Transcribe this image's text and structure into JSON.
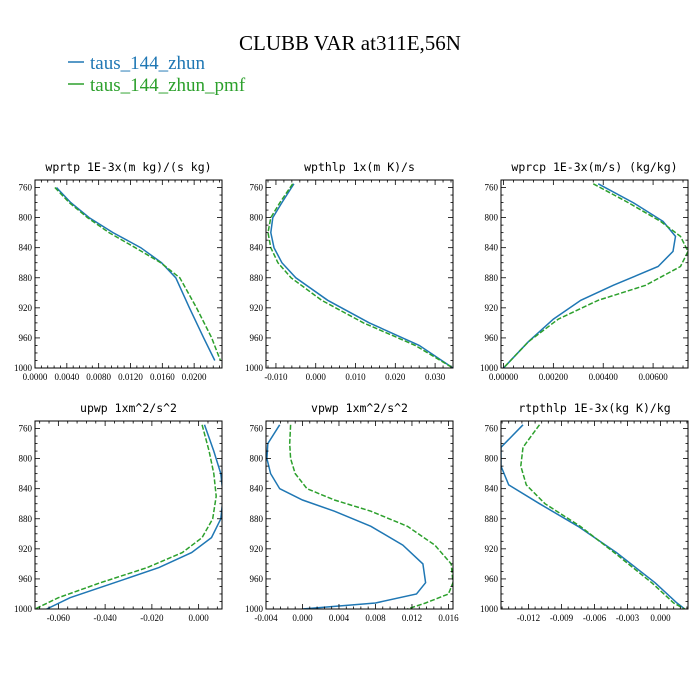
{
  "figure": {
    "title": "CLUBB VAR at311E,56N",
    "legend": [
      {
        "label": "taus_144_zhun",
        "color": "#1f77b4"
      },
      {
        "label": "taus_144_zhun_pmf",
        "color": "#2ca02c"
      }
    ]
  },
  "chart_data": [
    {
      "type": "line",
      "title": "wprtp  1E-3x(m kg)/(s kg)",
      "xlim": [
        0.0,
        0.0235
      ],
      "ylim": [
        1000,
        750
      ],
      "xticks": [
        0.0,
        0.004,
        0.008,
        0.012,
        0.016,
        0.02
      ],
      "xtick_labels": [
        "0.0000",
        "0.0040",
        "0.0080",
        "0.0120",
        "0.0160",
        "0.0200"
      ],
      "yticks": [
        760,
        800,
        840,
        880,
        920,
        960,
        1000
      ],
      "series": [
        {
          "name": "taus_144_zhun",
          "x": [
            0.0027,
            0.0045,
            0.0068,
            0.0098,
            0.0133,
            0.0159,
            0.0177,
            0.0194,
            0.0212,
            0.0226
          ],
          "y": [
            760,
            780,
            800,
            820,
            840,
            860,
            880,
            920,
            960,
            990
          ]
        },
        {
          "name": "taus_144_zhun_pmf",
          "x": [
            0.0025,
            0.0043,
            0.0066,
            0.0093,
            0.0126,
            0.0158,
            0.0182,
            0.0203,
            0.0222,
            0.0233
          ],
          "y": [
            760,
            780,
            800,
            820,
            840,
            860,
            880,
            920,
            960,
            990
          ]
        }
      ]
    },
    {
      "type": "line",
      "title": "wpthlp  1x(m K)/s",
      "xlim": [
        -0.0125,
        0.0345
      ],
      "ylim": [
        1000,
        750
      ],
      "xticks": [
        -0.01,
        0.0,
        0.01,
        0.02,
        0.03
      ],
      "xtick_labels": [
        "-0.010",
        "0.000",
        "0.010",
        "0.020",
        "0.030"
      ],
      "yticks": [
        760,
        800,
        840,
        880,
        920,
        960,
        1000
      ],
      "series": [
        {
          "name": "taus_144_zhun",
          "x": [
            -0.0055,
            -0.0085,
            -0.0108,
            -0.0113,
            -0.0105,
            -0.0085,
            -0.005,
            0.003,
            0.0135,
            0.026,
            0.0345
          ],
          "y": [
            755,
            780,
            800,
            820,
            840,
            860,
            880,
            910,
            940,
            970,
            1000
          ]
        },
        {
          "name": "taus_144_zhun_pmf",
          "x": [
            -0.0058,
            -0.009,
            -0.0113,
            -0.012,
            -0.0113,
            -0.0095,
            -0.0062,
            0.0015,
            0.012,
            0.025,
            0.0345
          ],
          "y": [
            755,
            780,
            800,
            820,
            840,
            860,
            880,
            910,
            940,
            970,
            1000
          ]
        }
      ]
    },
    {
      "type": "line",
      "title": "wprcp  1E-3x(m/s) (kg/kg)",
      "xlim": [
        -0.0001,
        0.0074
      ],
      "ylim": [
        1000,
        750
      ],
      "xticks": [
        0.0,
        0.002,
        0.004,
        0.006
      ],
      "xtick_labels": [
        "0.00000",
        "0.00200",
        "0.00400",
        "0.00600"
      ],
      "yticks": [
        760,
        800,
        840,
        880,
        920,
        960,
        1000
      ],
      "series": [
        {
          "name": "taus_144_zhun",
          "x": [
            0.0038,
            0.0052,
            0.0064,
            0.0069,
            0.0068,
            0.0062,
            0.0044,
            0.0031,
            0.002,
            0.001,
            0.0
          ],
          "y": [
            755,
            780,
            805,
            825,
            845,
            865,
            890,
            910,
            935,
            965,
            1000
          ]
        },
        {
          "name": "taus_144_zhun_pmf",
          "x": [
            0.0036,
            0.005,
            0.0063,
            0.0071,
            0.0074,
            0.0071,
            0.0057,
            0.0038,
            0.0022,
            0.001,
            0.0
          ],
          "y": [
            755,
            780,
            805,
            825,
            845,
            865,
            890,
            910,
            935,
            965,
            1000
          ]
        }
      ]
    },
    {
      "type": "line",
      "title": "upwp  1xm^2/s^2",
      "xlim": [
        -0.07,
        0.01
      ],
      "ylim": [
        1000,
        750
      ],
      "xticks": [
        -0.06,
        -0.04,
        -0.02,
        0.0
      ],
      "xtick_labels": [
        "-0.060",
        "-0.040",
        "-0.020",
        "0.000"
      ],
      "yticks": [
        760,
        800,
        840,
        880,
        920,
        960,
        1000
      ],
      "series": [
        {
          "name": "taus_144_zhun",
          "x": [
            0.0025,
            0.0065,
            0.0095,
            0.0105,
            0.0095,
            0.0055,
            -0.003,
            -0.017,
            -0.036,
            -0.055,
            -0.065
          ],
          "y": [
            755,
            790,
            820,
            850,
            880,
            905,
            925,
            945,
            965,
            985,
            1000
          ]
        },
        {
          "name": "taus_144_zhun_pmf",
          "x": [
            0.0015,
            0.0045,
            0.0065,
            0.0075,
            0.006,
            0.0015,
            -0.007,
            -0.022,
            -0.042,
            -0.06,
            -0.07
          ],
          "y": [
            755,
            790,
            820,
            850,
            880,
            905,
            925,
            945,
            965,
            985,
            1000
          ]
        }
      ]
    },
    {
      "type": "line",
      "title": "vpwp  1xm^2/s^2",
      "xlim": [
        -0.004,
        0.0165
      ],
      "ylim": [
        1000,
        750
      ],
      "xticks": [
        -0.004,
        0.0,
        0.004,
        0.008,
        0.012,
        0.016
      ],
      "xtick_labels": [
        "-0.004",
        "0.000",
        "0.004",
        "0.008",
        "0.012",
        "0.016"
      ],
      "yticks": [
        760,
        800,
        840,
        880,
        920,
        960,
        1000
      ],
      "series": [
        {
          "name": "taus_144_zhun",
          "x": [
            -0.0025,
            -0.0038,
            -0.0039,
            -0.0035,
            -0.0025,
            0.0,
            0.0035,
            0.0075,
            0.011,
            0.0132,
            0.0135,
            0.0125,
            0.008,
            0.0
          ],
          "y": [
            755,
            780,
            800,
            820,
            840,
            855,
            870,
            890,
            915,
            940,
            965,
            980,
            992,
            1000
          ]
        },
        {
          "name": "taus_144_zhun_pmf",
          "x": [
            -0.0013,
            -0.0014,
            -0.0013,
            -0.0008,
            0.0005,
            0.0035,
            0.0075,
            0.0115,
            0.0145,
            0.0163,
            0.0165,
            0.016,
            0.0135,
            0.0115
          ],
          "y": [
            755,
            780,
            800,
            820,
            840,
            855,
            870,
            890,
            915,
            940,
            965,
            980,
            992,
            1000
          ]
        }
      ]
    },
    {
      "type": "line",
      "title": "rtpthlp  1E-3x(kg K)/kg",
      "xlim": [
        -0.0145,
        0.0025
      ],
      "ylim": [
        1000,
        750
      ],
      "xticks": [
        -0.012,
        -0.009,
        -0.006,
        -0.003,
        0.0
      ],
      "xtick_labels": [
        "-0.012",
        "-0.009",
        "-0.006",
        "-0.003",
        "0.000"
      ],
      "yticks": [
        760,
        800,
        840,
        880,
        920,
        960,
        1000
      ],
      "series": [
        {
          "name": "taus_144_zhun",
          "x": [
            -0.0125,
            -0.0145,
            -0.0145,
            -0.0138,
            -0.011,
            -0.0075,
            -0.004,
            -0.0005,
            0.0015,
            0.0022
          ],
          "y": [
            755,
            785,
            810,
            835,
            860,
            890,
            925,
            965,
            992,
            1000
          ]
        },
        {
          "name": "taus_144_zhun_pmf",
          "x": [
            -0.011,
            -0.0125,
            -0.0127,
            -0.0122,
            -0.0105,
            -0.0073,
            -0.0042,
            -0.0008,
            0.0012,
            0.0022
          ],
          "y": [
            755,
            785,
            810,
            835,
            860,
            890,
            925,
            965,
            992,
            1000
          ]
        }
      ]
    }
  ]
}
